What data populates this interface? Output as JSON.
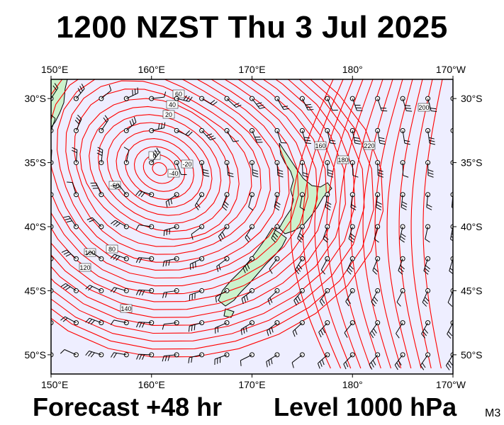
{
  "title": "1200 NZST Thu 3 Jul 2025",
  "forecast_label": "Forecast +48 hr",
  "level_label": "Level 1000 hPa",
  "model_id": "M3",
  "map": {
    "lon_range": [
      150,
      190
    ],
    "lat_range": [
      -51.5,
      -28.5
    ],
    "lon_labels": [
      {
        "lon": 150,
        "text": "150°E"
      },
      {
        "lon": 160,
        "text": "160°E"
      },
      {
        "lon": 170,
        "text": "170°E"
      },
      {
        "lon": 180,
        "text": "180°"
      },
      {
        "lon": 190,
        "text": "170°W"
      }
    ],
    "lat_labels": [
      {
        "lat": -30,
        "text": "30°S"
      },
      {
        "lat": -35,
        "text": "35°S"
      },
      {
        "lat": -40,
        "text": "40°S"
      },
      {
        "lat": -45,
        "text": "45°S"
      },
      {
        "lat": -50,
        "text": "50°S"
      }
    ],
    "contour_labels": [
      "60",
      "40",
      "20",
      "0",
      "-20",
      "-40",
      "-60",
      "80",
      "100",
      "120",
      "140",
      "160",
      "180",
      "200",
      "220"
    ],
    "colors": {
      "contour": "#ff0000",
      "ocean": "#eeeeff",
      "land": "#ccf2cc",
      "coast": "#000000",
      "wind_barb": "#000000"
    },
    "wind_barbs": "grid of wind barbs at 2.5 degree spacing"
  }
}
